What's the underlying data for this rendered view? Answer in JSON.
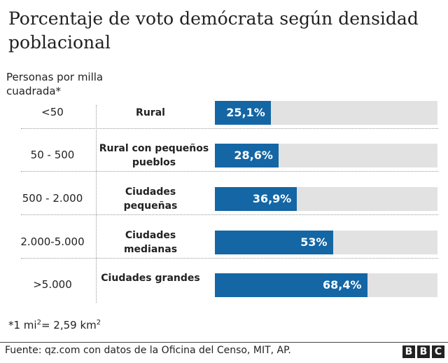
{
  "chart_data": {
    "type": "bar",
    "orientation": "horizontal",
    "title": "Porcentaje de voto demócrata según densidad poblacional",
    "row_header": "Personas por milla cuadrada*",
    "categories": [
      "<50",
      "50 - 500",
      "500 - 2.000",
      "2.000-5.000",
      ">5.000"
    ],
    "types": [
      "Rural",
      "Rural con pequeños pueblos",
      "Ciudades pequeñas",
      "Ciudades medianas",
      "Ciudades grandes"
    ],
    "values": [
      25.1,
      28.6,
      36.9,
      53,
      68.4
    ],
    "labels": [
      "25,1%",
      "28,6%",
      "36,9%",
      "53%",
      "68,4%"
    ],
    "xlim": [
      0,
      100
    ],
    "bar_color": "#1466a5",
    "track_color": "#e2e2e2",
    "grid": false
  },
  "footnote": {
    "prefix": "*1 mi",
    "sup1": "2",
    "mid": "= 2,59 km",
    "sup2": "2"
  },
  "source": "Fuente: qz.com con datos de la Oficina del Censo, MIT, AP.",
  "logo": "BBC"
}
